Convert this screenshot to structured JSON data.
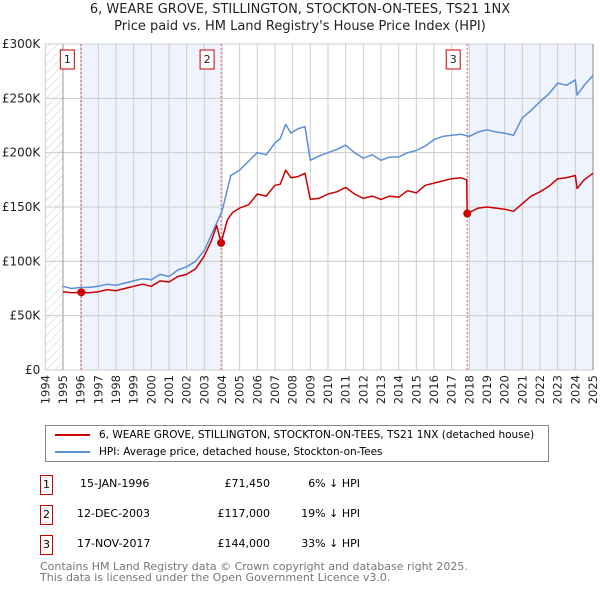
{
  "title_line1": "6, WEARE GROVE, STILLINGTON, STOCKTON-ON-TEES, TS21 1NX",
  "title_line2": "Price paid vs. HM Land Registry's House Price Index (HPI)",
  "chart_data": {
    "type": "line",
    "xlim": [
      1994,
      2025
    ],
    "ylim": [
      0,
      300000
    ],
    "x_ticks": [
      "1994",
      "1995",
      "1996",
      "1997",
      "1998",
      "1999",
      "2000",
      "2001",
      "2002",
      "2003",
      "2004",
      "2005",
      "2006",
      "2007",
      "2008",
      "2009",
      "2010",
      "2011",
      "2012",
      "2013",
      "2014",
      "2015",
      "2016",
      "2017",
      "2018",
      "2019",
      "2020",
      "2021",
      "2022",
      "2023",
      "2024",
      "2025"
    ],
    "y_ticks": [
      {
        "v": 0,
        "label": "£0"
      },
      {
        "v": 50000,
        "label": "£50K"
      },
      {
        "v": 100000,
        "label": "£100K"
      },
      {
        "v": 150000,
        "label": "£150K"
      },
      {
        "v": 200000,
        "label": "£200K"
      },
      {
        "v": 250000,
        "label": "£250K"
      },
      {
        "v": 300000,
        "label": "£300K"
      }
    ],
    "grid": true,
    "series": [
      {
        "name": "6, WEARE GROVE, STILLINGTON, STOCKTON-ON-TEES, TS21 1NX (detached house)",
        "color": "#cc0000",
        "x": [
          1995,
          1995.5,
          1996.04,
          1996.5,
          1997,
          1997.5,
          1998,
          1998.5,
          1999,
          1999.5,
          2000,
          2000.5,
          2001,
          2001.5,
          2002,
          2002.5,
          2003,
          2003.4,
          2003.7,
          2003.95,
          2004.3,
          2004.6,
          2005,
          2005.5,
          2006,
          2006.5,
          2007,
          2007.3,
          2007.6,
          2007.9,
          2008.3,
          2008.7,
          2009,
          2009.5,
          2010,
          2010.5,
          2011,
          2011.5,
          2012,
          2012.5,
          2013,
          2013.5,
          2014,
          2014.5,
          2015,
          2015.5,
          2016,
          2016.5,
          2017,
          2017.5,
          2017.85,
          2017.88,
          2018.5,
          2019,
          2019.5,
          2020,
          2020.5,
          2021,
          2021.5,
          2022,
          2022.5,
          2023,
          2023.5,
          2024,
          2024.1,
          2024.5,
          2025
        ],
        "y": [
          72000,
          71000,
          71450,
          71000,
          72000,
          74000,
          73000,
          75000,
          77000,
          79000,
          77000,
          82000,
          81000,
          86000,
          88000,
          93000,
          105000,
          119000,
          133000,
          117000,
          138000,
          145000,
          149000,
          152000,
          162000,
          160000,
          170000,
          171000,
          184000,
          177000,
          178000,
          181000,
          157000,
          158000,
          162000,
          164000,
          168000,
          162000,
          158000,
          160000,
          157000,
          160000,
          159000,
          165000,
          163000,
          170000,
          172000,
          174000,
          176000,
          177000,
          175000,
          144000,
          149000,
          150000,
          149000,
          148000,
          146000,
          153000,
          160000,
          164000,
          169000,
          176000,
          177000,
          179000,
          167000,
          175000,
          181000
        ]
      },
      {
        "name": "HPI: Average price, detached house, Stockton-on-Tees",
        "color": "#5b8fd6",
        "x": [
          1995,
          1995.5,
          1996,
          1996.5,
          1997,
          1997.5,
          1998,
          1998.5,
          1999,
          1999.5,
          2000,
          2000.5,
          2001,
          2001.5,
          2002,
          2002.5,
          2003,
          2003.5,
          2004,
          2004.5,
          2005,
          2005.5,
          2006,
          2006.5,
          2007,
          2007.3,
          2007.6,
          2007.9,
          2008.3,
          2008.7,
          2009,
          2009.5,
          2010,
          2010.5,
          2011,
          2011.5,
          2012,
          2012.5,
          2013,
          2013.5,
          2014,
          2014.5,
          2015,
          2015.5,
          2016,
          2016.5,
          2017,
          2017.5,
          2018,
          2018.5,
          2019,
          2019.5,
          2020,
          2020.5,
          2021,
          2021.5,
          2022,
          2022.5,
          2023,
          2023.5,
          2024,
          2024.1,
          2024.5,
          2025
        ],
        "y": [
          77000,
          75000,
          76000,
          76000,
          77000,
          79000,
          78000,
          80000,
          82000,
          84000,
          83000,
          88000,
          86000,
          92000,
          95000,
          100000,
          110000,
          128000,
          146000,
          179000,
          184000,
          192000,
          200000,
          198000,
          209000,
          213000,
          226000,
          218000,
          222000,
          224000,
          193000,
          197000,
          200000,
          203000,
          207000,
          200000,
          195000,
          198000,
          193000,
          196000,
          196000,
          200000,
          202000,
          206000,
          212000,
          215000,
          216000,
          217000,
          215000,
          219000,
          221000,
          219000,
          218000,
          216000,
          232000,
          239000,
          247000,
          254000,
          264000,
          262000,
          267000,
          253000,
          262000,
          271000
        ]
      }
    ],
    "sales": [
      {
        "n": "1",
        "x": 1996.04,
        "y": 71450
      },
      {
        "n": "2",
        "x": 2003.95,
        "y": 117000
      },
      {
        "n": "3",
        "x": 2017.88,
        "y": 144000
      }
    ],
    "shaded_ranges": [
      [
        1996.04,
        2003.95
      ],
      [
        2017.88,
        2025
      ]
    ],
    "hatched_range": [
      1994,
      1995
    ]
  },
  "legend": {
    "property": "6, WEARE GROVE, STILLINGTON, STOCKTON-ON-TEES, TS21 1NX (detached house)",
    "hpi": "HPI: Average price, detached house, Stockton-on-Tees"
  },
  "transactions": [
    {
      "n": "1",
      "date": "15-JAN-1996",
      "price": "£71,450",
      "delta": "6% ↓ HPI"
    },
    {
      "n": "2",
      "date": "12-DEC-2003",
      "price": "£117,000",
      "delta": "19% ↓ HPI"
    },
    {
      "n": "3",
      "date": "17-NOV-2017",
      "price": "£144,000",
      "delta": "33% ↓ HPI"
    }
  ],
  "footer": {
    "line1": "Contains HM Land Registry data © Crown copyright and database right 2025.",
    "line2": "This data is licensed under the Open Government Licence v3.0."
  }
}
